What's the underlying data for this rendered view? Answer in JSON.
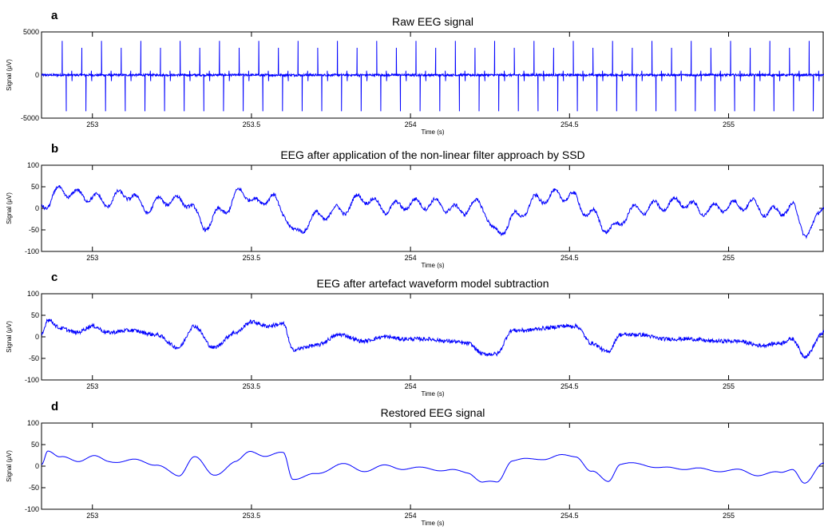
{
  "chart_data": [
    {
      "letter": "a",
      "type": "line",
      "title": "Raw EEG signal",
      "xlabel": "Time (s)",
      "ylabel": "Signal (μV)",
      "xlim": [
        252.84,
        255.3
      ],
      "ylim": [
        -5000,
        5000
      ],
      "xticks": [
        253,
        253.5,
        254,
        254.5,
        255
      ],
      "xtick_labels": [
        "253",
        "253.5",
        "254",
        "254.5",
        "255"
      ],
      "yticks": [
        -5000,
        0,
        5000
      ],
      "ytick_labels": [
        "-5000",
        "0",
        "5000"
      ],
      "grid": false,
      "line_color": "#0000ff",
      "series": [
        {
          "values_description_free": true,
          "baseline": 0,
          "spike_interval_s": 0.0618,
          "spike_first_s": 252.905,
          "spike_positive": 3950,
          "spike_negative": -4200,
          "noise_amplitude": 250
        }
      ]
    },
    {
      "letter": "b",
      "type": "line",
      "title": "EEG after application of the non-linear filter approach by SSD",
      "xlabel": "Time (s)",
      "ylabel": "Signal (μV)",
      "xlim": [
        252.84,
        255.3
      ],
      "ylim": [
        -100,
        100
      ],
      "xticks": [
        253,
        253.5,
        254,
        254.5,
        255
      ],
      "xtick_labels": [
        "253",
        "253.5",
        "254",
        "254.5",
        "255"
      ],
      "yticks": [
        -100,
        -50,
        0,
        50,
        100
      ],
      "ytick_labels": [
        "-100",
        "-50",
        "0",
        "50",
        "100"
      ],
      "grid": false,
      "line_color": "#0000ff",
      "series": [
        {
          "x": [
            252.84,
            252.9,
            252.97,
            253.05,
            253.1,
            253.18,
            253.22,
            253.3,
            253.35,
            253.42,
            253.47,
            253.52,
            253.56,
            253.6,
            253.64,
            253.7,
            253.78,
            253.85,
            253.92,
            254.0,
            254.08,
            254.15,
            254.22,
            254.27,
            254.33,
            254.4,
            254.45,
            254.5,
            254.56,
            254.63,
            254.7,
            254.78,
            254.85,
            254.92,
            255.0,
            255.07,
            255.13,
            255.2,
            255.25,
            255.3
          ],
          "y": [
            5,
            40,
            30,
            15,
            35,
            0,
            20,
            15,
            -40,
            0,
            40,
            10,
            30,
            -10,
            -60,
            -20,
            -5,
            25,
            0,
            10,
            10,
            -5,
            10,
            -60,
            -20,
            20,
            30,
            30,
            -10,
            -50,
            -5,
            5,
            15,
            -5,
            5,
            10,
            -10,
            0,
            -60,
            10
          ]
        }
      ]
    },
    {
      "letter": "c",
      "type": "line",
      "title": "EEG after artefact waveform model subtraction",
      "xlabel": "Time (s)",
      "ylabel": "Signal (μV)",
      "xlim": [
        252.84,
        255.3
      ],
      "ylim": [
        -100,
        100
      ],
      "xticks": [
        253,
        253.5,
        254,
        254.5,
        255
      ],
      "xtick_labels": [
        "253",
        "253.5",
        "254",
        "254.5",
        "255"
      ],
      "yticks": [
        -100,
        -50,
        0,
        50,
        100
      ],
      "ytick_labels": [
        "-100",
        "-50",
        "0",
        "50",
        "100"
      ],
      "grid": false,
      "line_color": "#0000ff",
      "series": [
        {
          "x": [
            252.84,
            252.86,
            252.9,
            252.95,
            253.0,
            253.05,
            253.12,
            253.2,
            253.27,
            253.32,
            253.38,
            253.45,
            253.5,
            253.55,
            253.6,
            253.63,
            253.7,
            253.78,
            253.85,
            253.92,
            253.98,
            254.05,
            254.12,
            254.18,
            254.23,
            254.27,
            254.32,
            254.36,
            254.42,
            254.48,
            254.52,
            254.57,
            254.62,
            254.66,
            254.72,
            254.8,
            254.88,
            254.95,
            255.03,
            255.1,
            255.16,
            255.2,
            255.24,
            255.3
          ],
          "y": [
            5,
            40,
            20,
            10,
            25,
            10,
            15,
            5,
            -25,
            25,
            -25,
            10,
            35,
            25,
            30,
            -30,
            -20,
            5,
            -10,
            0,
            -5,
            -5,
            -10,
            -15,
            -40,
            -40,
            15,
            15,
            20,
            25,
            25,
            -15,
            -35,
            5,
            5,
            -5,
            -5,
            -10,
            -10,
            -20,
            -15,
            -5,
            -45,
            10
          ]
        }
      ]
    },
    {
      "letter": "d",
      "type": "line",
      "title": "Restored EEG signal",
      "xlabel": "Time (s)",
      "ylabel": "Signal (μV)",
      "xlim": [
        252.84,
        255.3
      ],
      "ylim": [
        -100,
        100
      ],
      "xticks": [
        253,
        253.5,
        254,
        254.5,
        255
      ],
      "xtick_labels": [
        "253",
        "253.5",
        "254",
        "254.5",
        "255"
      ],
      "yticks": [
        -100,
        -50,
        0,
        50,
        100
      ],
      "ytick_labels": [
        "-100",
        "-50",
        "0",
        "50",
        "100"
      ],
      "grid": false,
      "line_color": "#0000ff",
      "series": [
        {
          "x": [
            252.84,
            252.86,
            252.9,
            252.95,
            253.0,
            253.05,
            253.12,
            253.2,
            253.27,
            253.32,
            253.38,
            253.45,
            253.5,
            253.55,
            253.6,
            253.63,
            253.7,
            253.78,
            253.85,
            253.92,
            253.98,
            254.05,
            254.12,
            254.18,
            254.23,
            254.27,
            254.32,
            254.36,
            254.42,
            254.48,
            254.52,
            254.57,
            254.62,
            254.66,
            254.72,
            254.8,
            254.88,
            254.95,
            255.03,
            255.1,
            255.16,
            255.2,
            255.24,
            255.3
          ],
          "y": [
            5,
            38,
            20,
            12,
            24,
            10,
            14,
            5,
            -24,
            24,
            -22,
            10,
            34,
            24,
            30,
            -28,
            -20,
            5,
            -10,
            0,
            -5,
            -5,
            -10,
            -14,
            -38,
            -38,
            14,
            15,
            18,
            24,
            24,
            -14,
            -34,
            5,
            5,
            -5,
            -5,
            -10,
            -10,
            -20,
            -15,
            -5,
            -42,
            10
          ]
        }
      ]
    }
  ]
}
